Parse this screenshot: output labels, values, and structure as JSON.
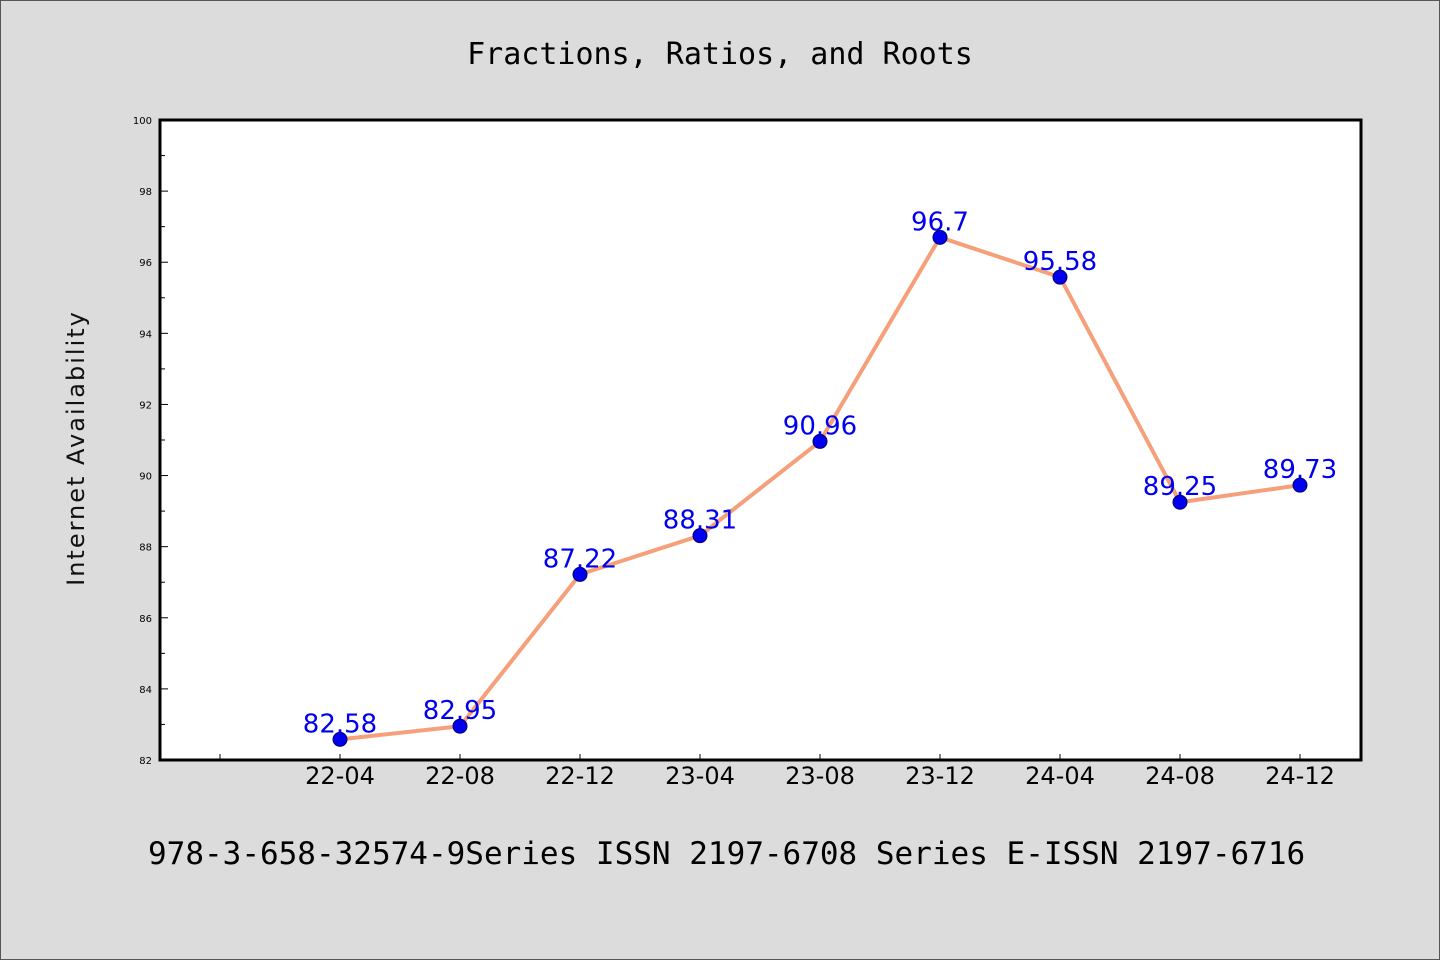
{
  "chart_data": {
    "type": "line",
    "title": "Fractions, Ratios, and Roots",
    "ylabel": "Internet Availability",
    "xlabel": "",
    "categories": [
      "22-04",
      "22-08",
      "22-12",
      "23-04",
      "23-08",
      "23-12",
      "24-04",
      "24-08",
      "24-12"
    ],
    "series": [
      {
        "values": [
          82.58,
          82.95,
          87.22,
          88.31,
          90.96,
          96.7,
          95.58,
          89.25,
          89.73
        ]
      }
    ],
    "data_labels": [
      "82.58",
      "82.95",
      "87.22",
      "88.31",
      "90.96",
      "96.7",
      "95.58",
      "89.25",
      "89.73"
    ],
    "ylim": [
      82,
      100
    ],
    "yticks": [
      "82",
      "84",
      "86",
      "88",
      "90",
      "92",
      "94",
      "96",
      "98",
      "100"
    ],
    "grid": false,
    "legend": "none",
    "colors": {
      "line": "#f5a07a",
      "marker": "#0000ee",
      "label": "#0000ee",
      "background": "#dcdcdc",
      "plot_background": "#ffffff"
    }
  },
  "footer": "978-3-658-32574-9Series ISSN 2197-6708 Series E-ISSN 2197-6716"
}
